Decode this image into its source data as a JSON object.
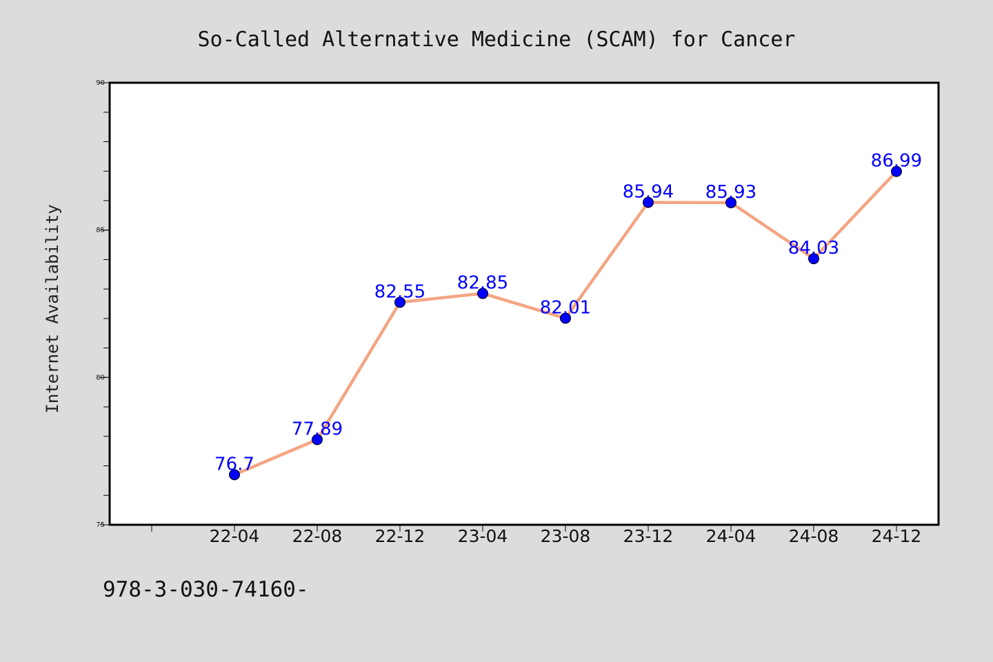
{
  "chart_data": {
    "type": "line",
    "title": "So-Called Alternative Medicine (SCAM) for Cancer",
    "ylabel": "Internet Availability",
    "xlabel": "",
    "categories": [
      "22-04",
      "22-08",
      "22-12",
      "23-04",
      "23-08",
      "23-12",
      "24-04",
      "24-08",
      "24-12"
    ],
    "series": [
      {
        "values": [
          76.7,
          77.89,
          82.55,
          82.85,
          82.01,
          85.94,
          85.93,
          84.03,
          86.99
        ],
        "labels": [
          "76.7",
          "77.89",
          "82.55",
          "82.85",
          "82.01",
          "85.94",
          "85.93",
          "84.03",
          "86.99"
        ],
        "line_color": "#f4a582",
        "marker_color": "#0000ff",
        "label_color": "#0000ff"
      }
    ],
    "ylim": [
      75,
      90
    ],
    "yticks": [
      "75",
      "80",
      "85",
      "90"
    ],
    "yminor_step": 1,
    "grid": false,
    "legend": "none",
    "background": "#dcdcdc",
    "plot_background": "#ffffff"
  },
  "footer": {
    "text": "978-3-030-74160-"
  }
}
